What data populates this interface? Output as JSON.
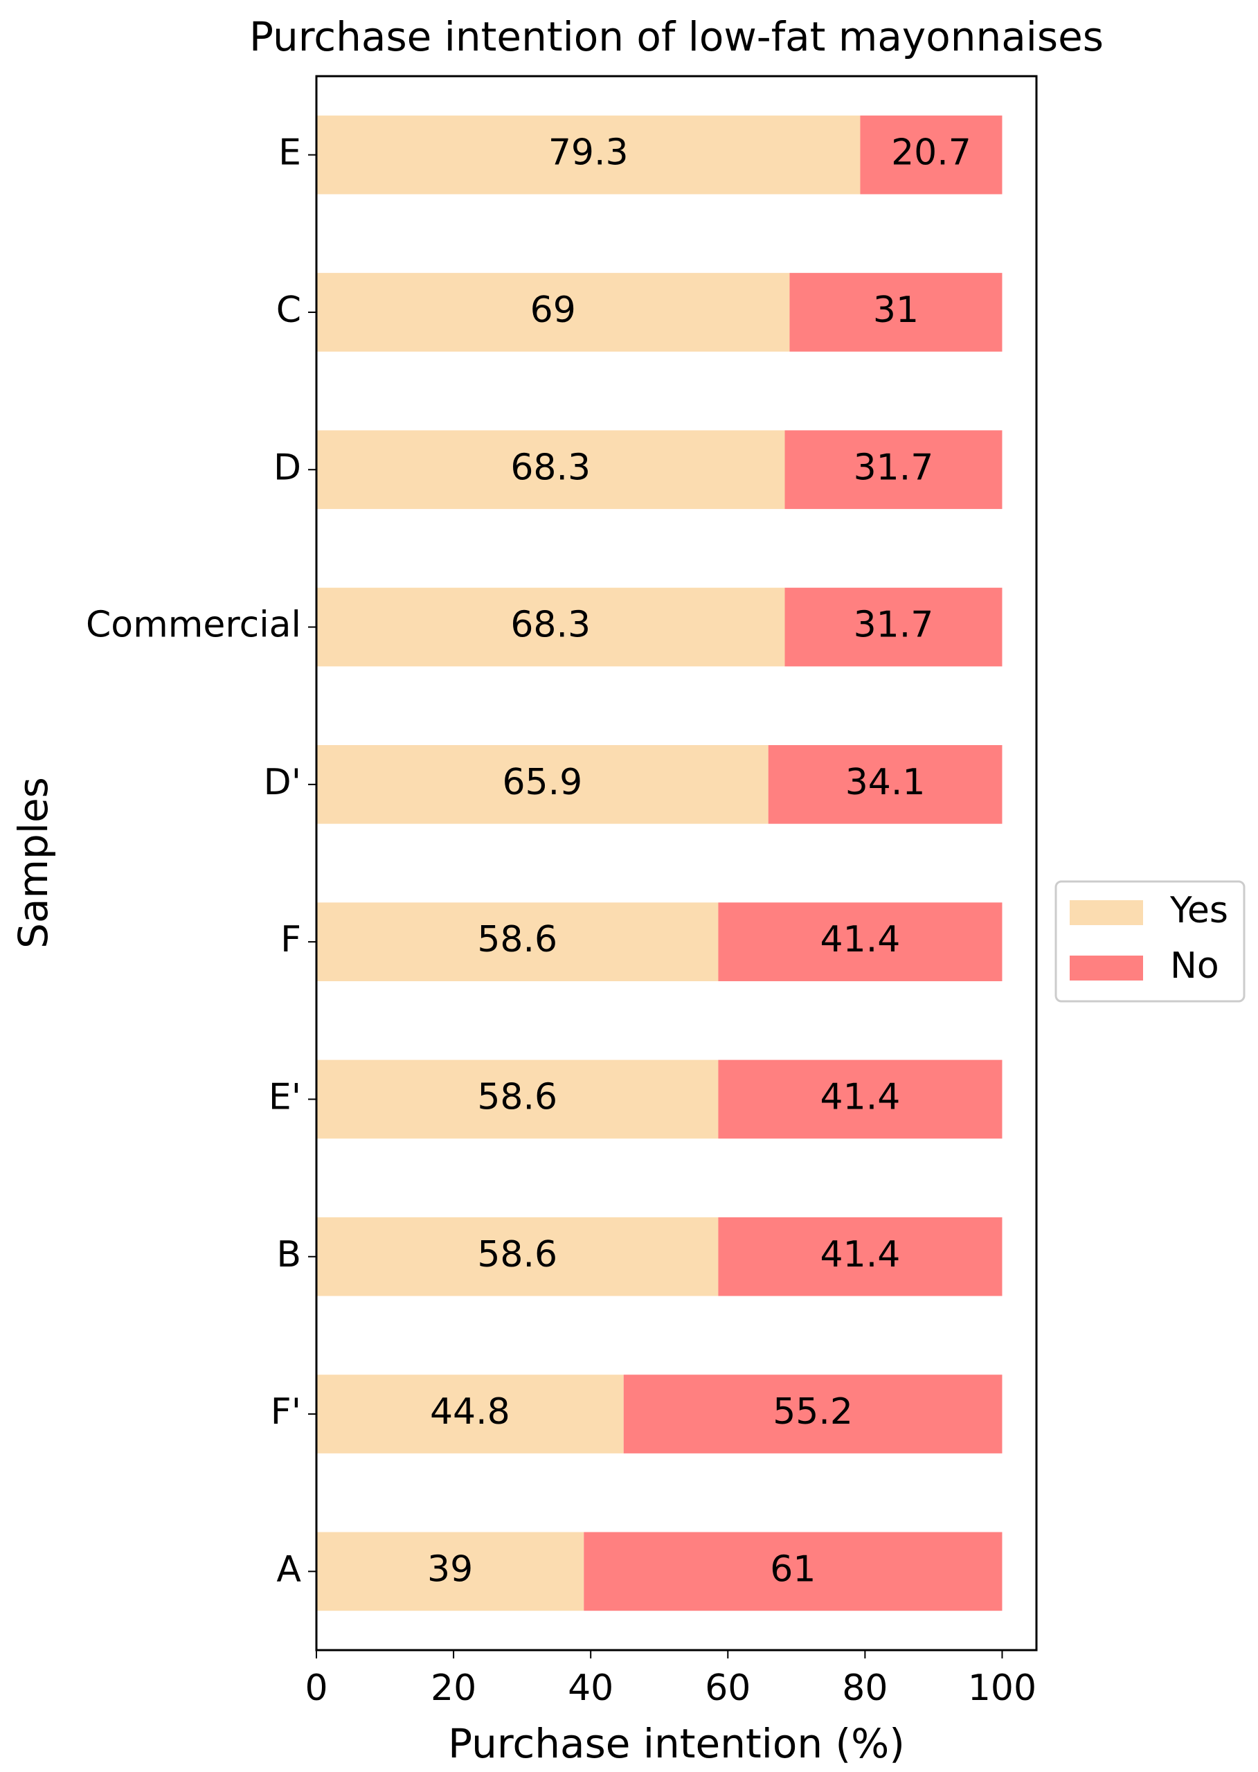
{
  "chart_data": {
    "type": "stacked_barh",
    "title": "Purchase intention of low-fat mayonnaises",
    "x_label": "Purchase intention (%)",
    "y_label": "Samples",
    "categories": [
      "E",
      "C",
      "D",
      "Commercial",
      "D'",
      "F",
      "E'",
      "B",
      "F'",
      "A"
    ],
    "series": [
      {
        "name": "Yes",
        "color": "#fbdcb0",
        "values": [
          79.3,
          69,
          68.3,
          68.3,
          65.9,
          58.6,
          58.6,
          58.6,
          44.8,
          39
        ]
      },
      {
        "name": "No",
        "color": "#ff8080",
        "values": [
          20.7,
          31,
          31.7,
          31.7,
          34.1,
          41.4,
          41.4,
          41.4,
          55.2,
          61
        ]
      }
    ],
    "xlim": [
      0,
      105
    ],
    "xticks": [
      0,
      20,
      40,
      60,
      80,
      100
    ],
    "legend": "right"
  }
}
